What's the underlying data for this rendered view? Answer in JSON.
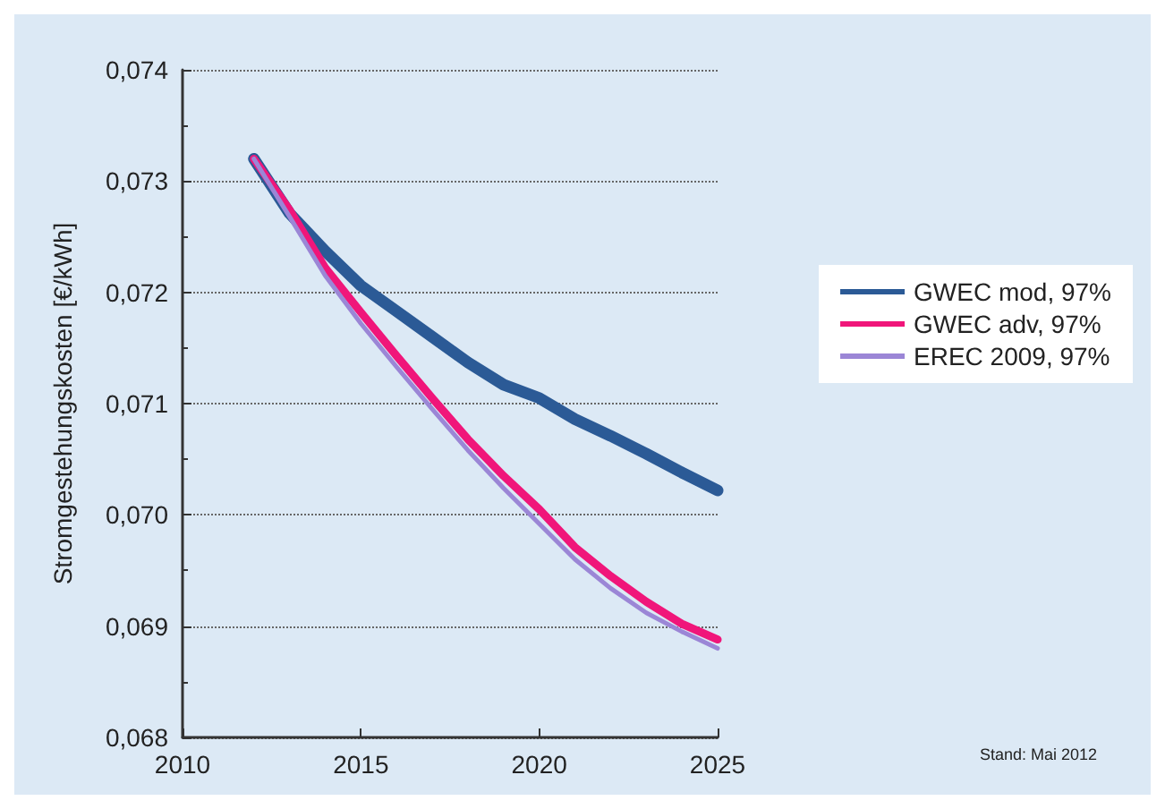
{
  "chart_data": {
    "type": "line",
    "ylabel": "Stromgestehungskosten [€/kWh]",
    "x": [
      2012,
      2013,
      2014,
      2015,
      2016,
      2017,
      2018,
      2019,
      2020,
      2021,
      2022,
      2023,
      2024,
      2025
    ],
    "series": [
      {
        "name": "GWEC mod, 97%",
        "color": "#2b5a96",
        "values": [
          0.0732,
          0.07271,
          0.07237,
          0.07206,
          0.07183,
          0.0716,
          0.07137,
          0.07117,
          0.07105,
          0.07086,
          0.07071,
          0.07055,
          0.07038,
          0.07022
        ]
      },
      {
        "name": "GWEC adv, 97%",
        "color": "#f0167a",
        "values": [
          0.0732,
          0.07274,
          0.07222,
          0.07182,
          0.07143,
          0.07105,
          0.07068,
          0.07035,
          0.07005,
          0.06971,
          0.06945,
          0.06922,
          0.06902,
          0.06888
        ]
      },
      {
        "name": "EREC 2009, 97%",
        "color": "#9b86d6",
        "values": [
          0.0732,
          0.07268,
          0.07215,
          0.07172,
          0.07133,
          0.07095,
          0.07058,
          0.07024,
          0.06992,
          0.0696,
          0.06934,
          0.06912,
          0.06895,
          0.0688
        ]
      }
    ],
    "xlim": [
      2010,
      2025
    ],
    "xticks": [
      2010,
      2015,
      2020,
      2025
    ],
    "ylim": [
      0.068,
      0.074
    ],
    "yticks": [
      {
        "value": 0.068,
        "label": "0,068"
      },
      {
        "value": 0.069,
        "label": "0,069"
      },
      {
        "value": 0.07,
        "label": "0,070"
      },
      {
        "value": 0.071,
        "label": "0,071"
      },
      {
        "value": 0.072,
        "label": "0,072"
      },
      {
        "value": 0.073,
        "label": "0,073"
      },
      {
        "value": 0.074,
        "label": "0,074"
      }
    ],
    "grid": "y",
    "legend": "right",
    "marker": "none",
    "line_style": "solid",
    "annotations": [
      "Stand: Mai 2012"
    ]
  }
}
